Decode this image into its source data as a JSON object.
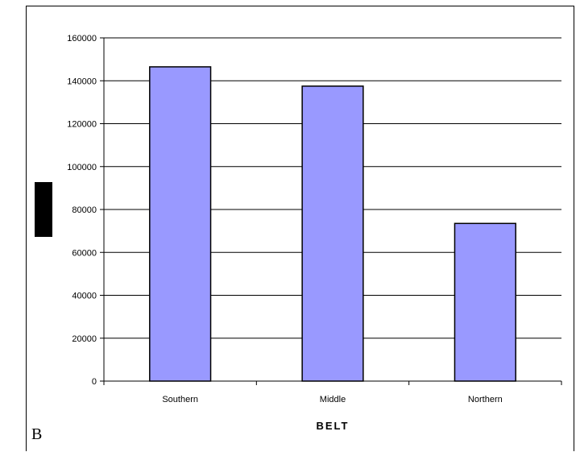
{
  "panel_label": "B",
  "colors": {
    "bar_fill": "#9999ff",
    "bar_stroke": "#000000",
    "grid": "#000000"
  },
  "chart_data": {
    "type": "bar",
    "title": "",
    "xlabel": "BELT",
    "ylabel": "",
    "categories": [
      "Southern",
      "Middle",
      "Northern"
    ],
    "values": [
      146500,
      137500,
      73500
    ],
    "ylim": [
      0,
      160000
    ],
    "yticks": [
      "0",
      "20000",
      "40000",
      "60000",
      "80000",
      "100000",
      "120000",
      "140000",
      "160000"
    ],
    "grid": true,
    "legend": "none"
  }
}
